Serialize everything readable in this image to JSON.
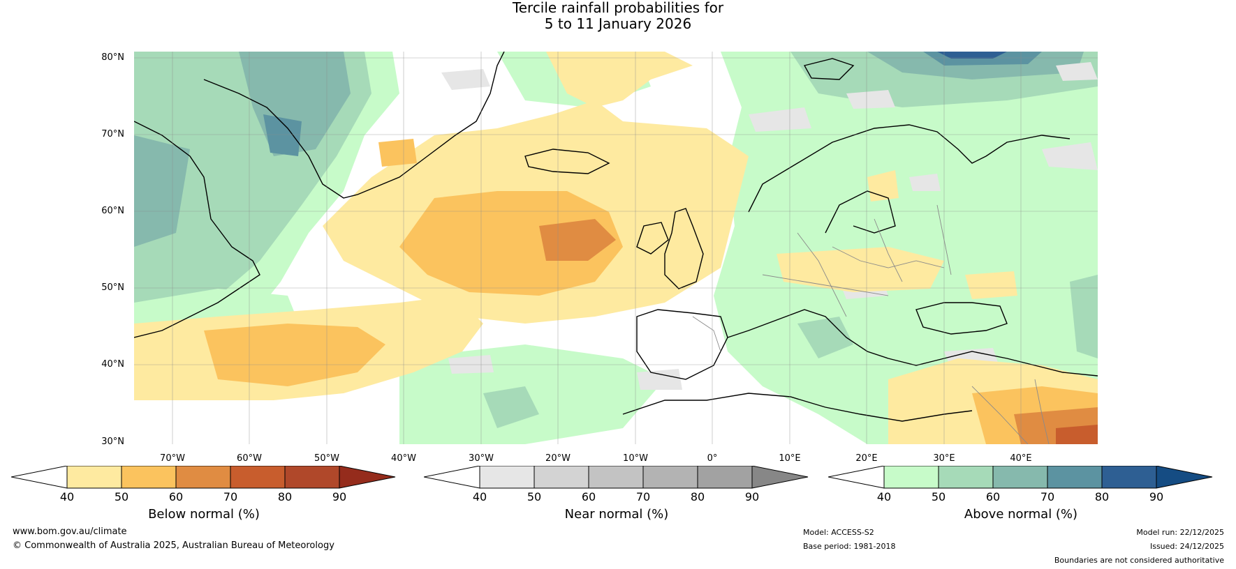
{
  "title_line1": "Tercile rainfall probabilities for",
  "title_line2": "5 to 11 January 2026",
  "lat_labels": [
    "80°N",
    "70°N",
    "60°N",
    "50°N",
    "40°N",
    "30°N"
  ],
  "lon_labels": [
    "70°W",
    "60°W",
    "50°W",
    "40°W",
    "30°W",
    "20°W",
    "10°W",
    "0°",
    "10°E",
    "20°E",
    "30°E",
    "40°E"
  ],
  "colorbars": [
    {
      "label": "Below normal (%)",
      "ticks": [
        "40",
        "50",
        "60",
        "70",
        "80",
        "90"
      ],
      "colors": [
        "#ffffff",
        "#feeaa0",
        "#fbc35e",
        "#e08c42",
        "#c85d2d",
        "#b0482a",
        "#952c1c"
      ]
    },
    {
      "label": "Near normal (%)",
      "ticks": [
        "40",
        "50",
        "60",
        "70",
        "80",
        "90"
      ],
      "colors": [
        "#ffffff",
        "#e6e6e6",
        "#d3d3d3",
        "#c3c3c3",
        "#b3b3b3",
        "#a2a2a2",
        "#878787"
      ]
    },
    {
      "label": "Above normal (%)",
      "ticks": [
        "40",
        "50",
        "60",
        "70",
        "80",
        "90"
      ],
      "colors": [
        "#ffffff",
        "#c7fbc9",
        "#a6dab8",
        "#86b9ad",
        "#5c93a1",
        "#2e5f93",
        "#154c83"
      ]
    }
  ],
  "footer": {
    "website": "www.bom.gov.au/climate",
    "copyright": "© Commonwealth of Australia 2025, Australian Bureau of Meteorology",
    "model": "Model: ACCESS-S2",
    "base_period": "Base period: 1981-2018",
    "model_run": "Model run: 22/12/2025",
    "issued": "Issued: 24/12/2025",
    "disclaimer": "Boundaries are not considered authoritative"
  }
}
